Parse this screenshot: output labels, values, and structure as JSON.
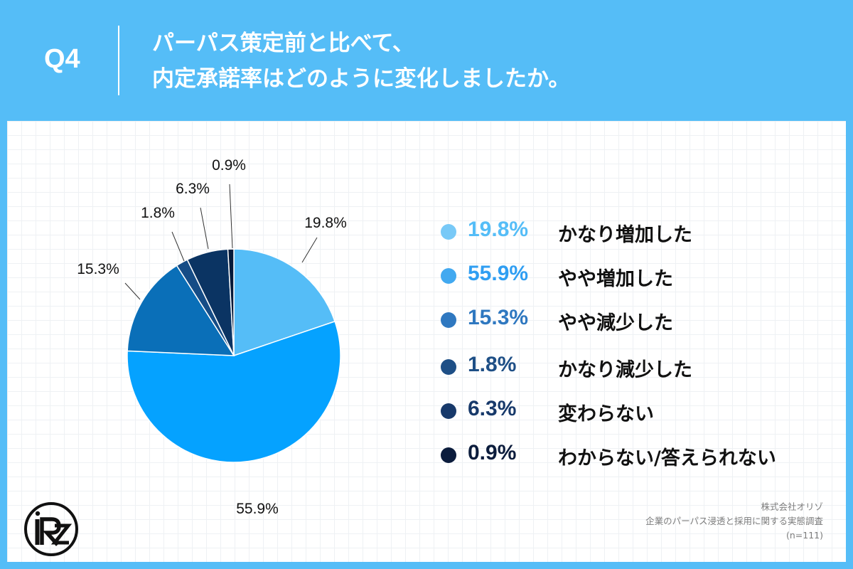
{
  "header": {
    "question_number": "Q4",
    "question_line1": "パーパス策定前と比べて、",
    "question_line2": "内定承諾率はどのように変化しましたか。"
  },
  "chart_data": {
    "type": "pie",
    "start_angle_deg": 0,
    "direction": "clockwise",
    "slices": [
      {
        "label": "かなり増加した",
        "value": 19.8,
        "display": "19.8%",
        "color": "#55bdf7"
      },
      {
        "label": "やや増加した",
        "value": 55.9,
        "display": "55.9%",
        "color": "#05a2ff"
      },
      {
        "label": "やや減少した",
        "value": 15.3,
        "display": "15.3%",
        "color": "#0a6fb8"
      },
      {
        "label": "かなり減少した",
        "value": 1.8,
        "display": "1.8%",
        "color": "#154c86"
      },
      {
        "label": "変わらない",
        "value": 6.3,
        "display": "6.3%",
        "color": "#0b3463"
      },
      {
        "label": "わからない/答えられない",
        "value": 0.9,
        "display": "0.9%",
        "color": "#041a3a"
      }
    ]
  },
  "legend": {
    "items": [
      {
        "pct": "19.8%",
        "label": "かなり増加した",
        "dot_color": "#78c9f7",
        "text_color": "#55bdf7"
      },
      {
        "pct": "55.9%",
        "label": "やや増加した",
        "dot_color": "#42a9f0",
        "text_color": "#2f9ef2"
      },
      {
        "pct": "15.3%",
        "label": "やや減少した",
        "dot_color": "#2f78c0",
        "text_color": "#2f78c0"
      },
      {
        "pct": "1.8%",
        "label": "かなり減少した",
        "dot_color": "#1e4f86",
        "text_color": "#1e4f86"
      },
      {
        "pct": "6.3%",
        "label": "変わらない",
        "dot_color": "#17396a",
        "text_color": "#17396a"
      },
      {
        "pct": "0.9%",
        "label": "わからない/答えられない",
        "dot_color": "#0b1c3c",
        "text_color": "#0b1c3c"
      }
    ]
  },
  "source": {
    "company": "株式会社オリゾ",
    "survey": "企業のパーパス浸透と採用に関する実態調査",
    "sample": "(n=111)"
  }
}
